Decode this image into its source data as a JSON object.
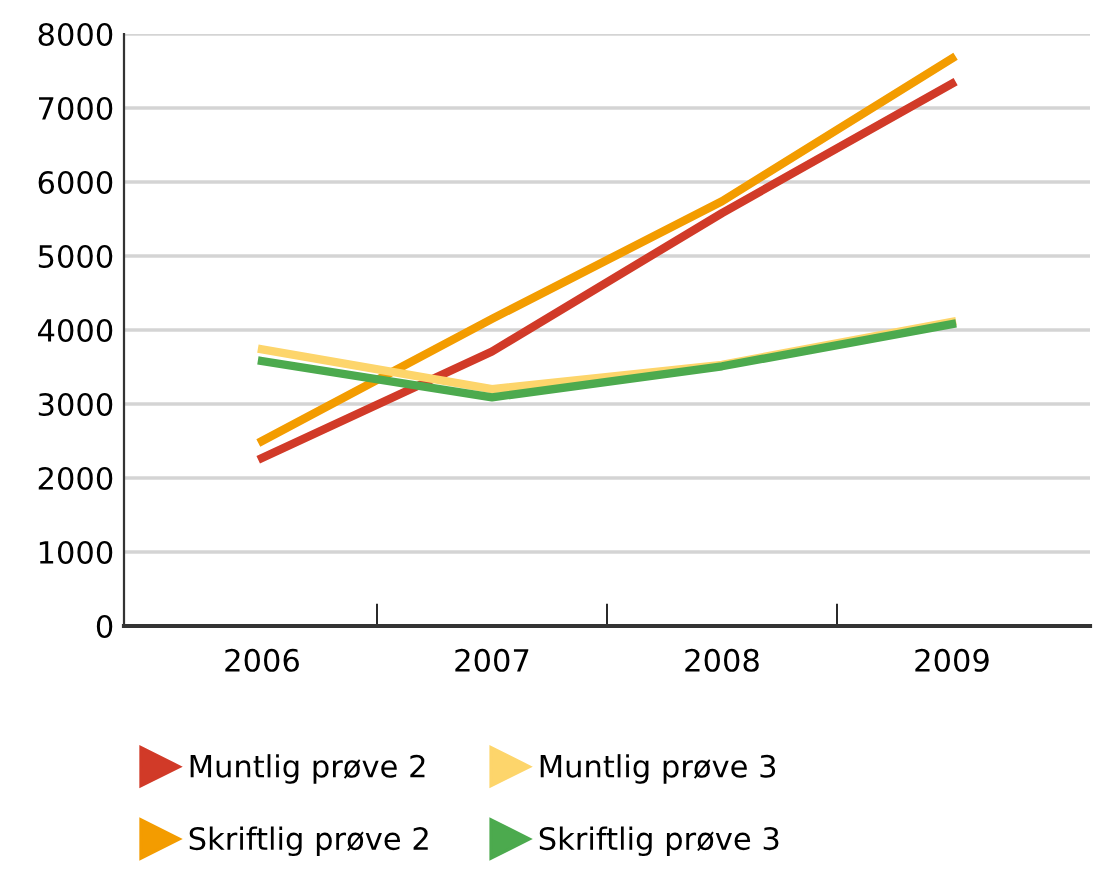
{
  "chart_data": {
    "type": "line",
    "categories": [
      "2006",
      "2007",
      "2008",
      "2009"
    ],
    "series": [
      {
        "name": "Muntlig prøve 2",
        "color": "#d13a28",
        "values": [
          2270,
          3710,
          5580,
          7330
        ]
      },
      {
        "name": "Skriftlig prøve 2",
        "color": "#f39c00",
        "values": [
          2500,
          4150,
          5740,
          7670
        ]
      },
      {
        "name": "Muntlig prøve 3",
        "color": "#fdd56b",
        "values": [
          3740,
          3200,
          3530,
          4110
        ]
      },
      {
        "name": "Skriftlig prøve 3",
        "color": "#4caa4e",
        "values": [
          3580,
          3090,
          3510,
          4080
        ]
      }
    ],
    "ylim": [
      0,
      8000
    ],
    "yticks": [
      0,
      1000,
      2000,
      3000,
      4000,
      5000,
      6000,
      7000,
      8000
    ],
    "grid": "y",
    "legend": "bottom",
    "marker": "none",
    "line_style": "solid"
  }
}
